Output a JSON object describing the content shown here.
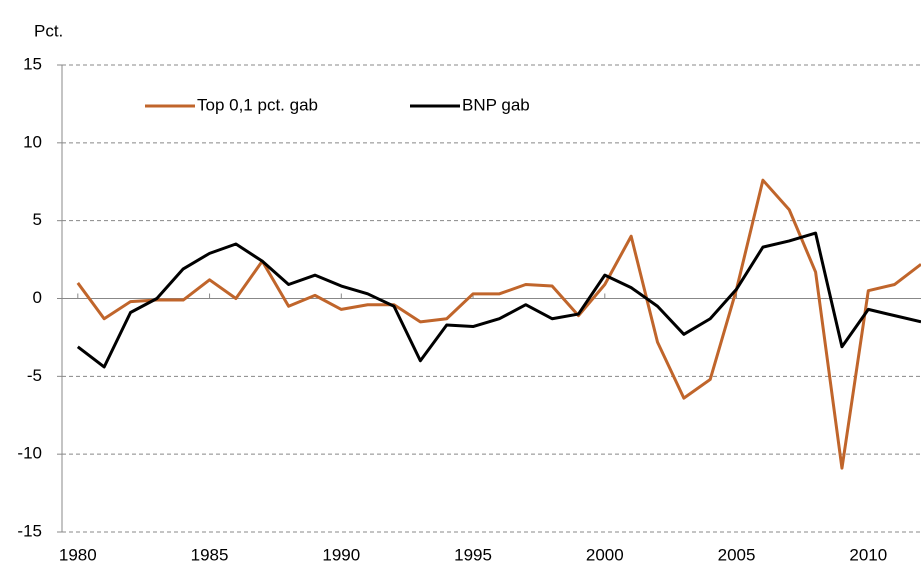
{
  "chart_data": {
    "type": "line",
    "y_label": "Pct.",
    "x": [
      1980,
      1981,
      1982,
      1983,
      1984,
      1985,
      1986,
      1987,
      1988,
      1989,
      1990,
      1991,
      1992,
      1993,
      1994,
      1995,
      1996,
      1997,
      1998,
      1999,
      2000,
      2001,
      2002,
      2003,
      2004,
      2005,
      2006,
      2007,
      2008,
      2009,
      2010,
      2011,
      2012
    ],
    "series": [
      {
        "name": "Top 0,1 pct. gab",
        "color": "#c0652b",
        "values": [
          1.0,
          -1.3,
          -0.2,
          -0.1,
          -0.1,
          1.2,
          0.0,
          2.4,
          -0.5,
          0.2,
          -0.7,
          -0.4,
          -0.4,
          -1.5,
          -1.3,
          0.3,
          0.3,
          0.9,
          0.8,
          -1.1,
          0.9,
          4.0,
          -2.8,
          -6.4,
          -5.2,
          0.6,
          7.6,
          5.7,
          1.7,
          -10.9,
          0.5,
          0.9,
          2.2
        ]
      },
      {
        "name": "BNP gab",
        "color": "#000000",
        "values": [
          -3.1,
          -4.4,
          -0.9,
          0.0,
          1.9,
          2.9,
          3.5,
          2.4,
          0.9,
          1.5,
          0.8,
          0.3,
          -0.5,
          -4.0,
          -1.7,
          -1.8,
          -1.3,
          -0.4,
          -1.3,
          -1.0,
          1.5,
          0.7,
          -0.5,
          -2.3,
          -1.3,
          0.6,
          3.3,
          3.7,
          4.2,
          -3.1,
          -0.7,
          -1.1,
          -1.5
        ]
      }
    ],
    "xlim": [
      1979.4,
      2012
    ],
    "xticks": [
      1980,
      1985,
      1990,
      1995,
      2000,
      2005,
      2010
    ],
    "ylim": [
      -15,
      15
    ],
    "yticks": [
      -15,
      -10,
      -5,
      0,
      5,
      10,
      15
    ],
    "grid": true,
    "legend": "top"
  }
}
